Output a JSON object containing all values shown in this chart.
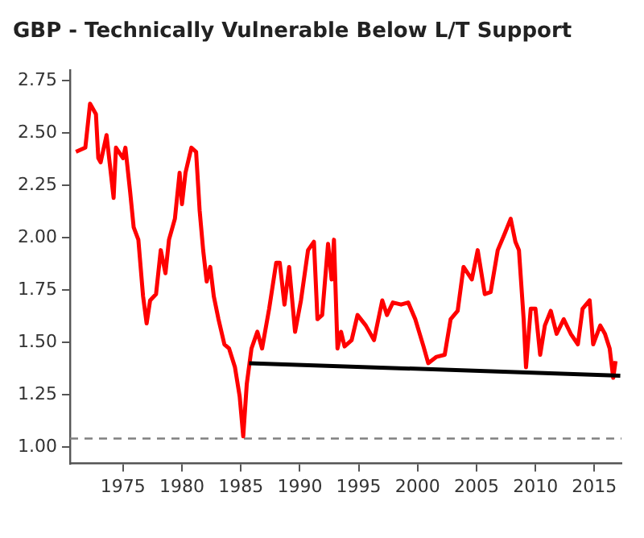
{
  "chart_data": {
    "type": "line",
    "title": "GBP - Technically Vulnerable Below L/T Support",
    "xlim": [
      1970.5,
      2017.3
    ],
    "ylim": [
      0.92,
      2.8
    ],
    "xticks": [
      1975,
      1980,
      1985,
      1990,
      1995,
      2000,
      2005,
      2010,
      2015
    ],
    "yticks": [
      {
        "value": 1,
        "label": "1.00"
      },
      {
        "value": 1.25,
        "label": "1.25"
      },
      {
        "value": 1.5,
        "label": "1.50"
      },
      {
        "value": 1.75,
        "label": "1.75"
      },
      {
        "value": 2,
        "label": "2.00"
      },
      {
        "value": 2.25,
        "label": "2.25"
      },
      {
        "value": 2.5,
        "label": "2.50"
      },
      {
        "value": 2.75,
        "label": "2.75"
      }
    ],
    "grid": false,
    "legend": false,
    "marker": "none",
    "series": [
      {
        "color": "#ff0000",
        "x": [
          1971.0,
          1971.8,
          1972.2,
          1972.7,
          1972.9,
          1973.1,
          1973.6,
          1973.9,
          1974.2,
          1974.4,
          1975.0,
          1975.2,
          1975.6,
          1975.9,
          1976.3,
          1976.7,
          1977.0,
          1977.3,
          1977.8,
          1978.2,
          1978.6,
          1978.9,
          1979.4,
          1979.8,
          1980.0,
          1980.3,
          1980.8,
          1981.2,
          1981.5,
          1981.8,
          1982.1,
          1982.4,
          1982.7,
          1983.1,
          1983.6,
          1984.0,
          1984.5,
          1984.9,
          1985.2,
          1985.5,
          1985.9,
          1986.4,
          1986.8,
          1987.4,
          1988.0,
          1988.3,
          1988.7,
          1989.1,
          1989.6,
          1990.1,
          1990.7,
          1991.2,
          1991.5,
          1991.9,
          1992.4,
          1992.7,
          1992.9,
          1993.2,
          1993.5,
          1993.8,
          1994.4,
          1994.9,
          1995.6,
          1996.3,
          1997.0,
          1997.4,
          1997.9,
          1998.6,
          1999.2,
          1999.8,
          2000.5,
          2000.9,
          2001.6,
          2002.3,
          2002.8,
          2003.4,
          2003.9,
          2004.6,
          2005.1,
          2005.7,
          2006.2,
          2006.8,
          2007.4,
          2007.9,
          2008.3,
          2008.6,
          2009.0,
          2009.2,
          2009.6,
          2010.0,
          2010.4,
          2010.8,
          2011.3,
          2011.8,
          2012.4,
          2013.0,
          2013.6,
          2014.0,
          2014.6,
          2014.9,
          2015.5,
          2015.9,
          2016.3,
          2016.6,
          2016.8
        ],
        "values": [
          2.41,
          2.43,
          2.64,
          2.59,
          2.38,
          2.36,
          2.49,
          2.34,
          2.19,
          2.43,
          2.38,
          2.43,
          2.22,
          2.05,
          1.99,
          1.72,
          1.59,
          1.7,
          1.73,
          1.94,
          1.83,
          1.99,
          2.09,
          2.31,
          2.16,
          2.31,
          2.43,
          2.41,
          2.13,
          1.94,
          1.79,
          1.86,
          1.72,
          1.61,
          1.49,
          1.47,
          1.38,
          1.24,
          1.05,
          1.3,
          1.47,
          1.55,
          1.47,
          1.66,
          1.88,
          1.88,
          1.68,
          1.86,
          1.55,
          1.7,
          1.94,
          1.98,
          1.61,
          1.63,
          1.97,
          1.8,
          1.99,
          1.47,
          1.55,
          1.48,
          1.51,
          1.63,
          1.58,
          1.51,
          1.7,
          1.63,
          1.69,
          1.68,
          1.69,
          1.61,
          1.48,
          1.4,
          1.43,
          1.44,
          1.61,
          1.65,
          1.86,
          1.8,
          1.94,
          1.73,
          1.74,
          1.94,
          2.02,
          2.09,
          1.98,
          1.94,
          1.61,
          1.38,
          1.66,
          1.66,
          1.44,
          1.58,
          1.65,
          1.54,
          1.61,
          1.54,
          1.49,
          1.66,
          1.7,
          1.49,
          1.58,
          1.54,
          1.47,
          1.33,
          1.41
        ]
      },
      {
        "type": "line",
        "color": "#000000",
        "x": [
          1985.7,
          2017.2
        ],
        "values": [
          1.4,
          1.34
        ]
      }
    ],
    "ref_lines": [
      {
        "axis": "y",
        "value": 1.04,
        "color": "#808080",
        "line_style": "dashed"
      }
    ]
  }
}
